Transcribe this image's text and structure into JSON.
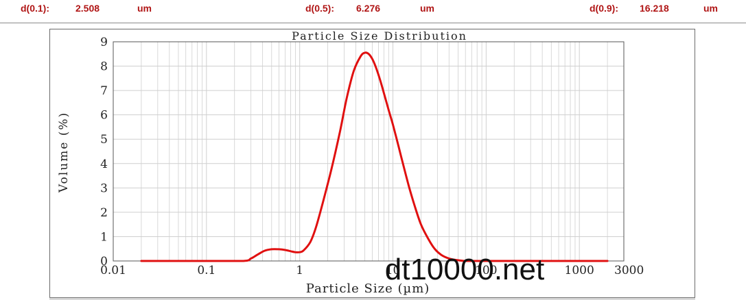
{
  "stats": {
    "d10": {
      "label": "d(0.1):",
      "value": "2.508",
      "unit": "um"
    },
    "d50": {
      "label": "d(0.5):",
      "value": "6.276",
      "unit": "um"
    },
    "d90": {
      "label": "d(0.9):",
      "value": "16.218",
      "unit": "um"
    }
  },
  "watermark": "dt10000.net",
  "colors": {
    "stat_text": "#b01515",
    "curve": "#e01010",
    "grid": "#cfcfcf",
    "axis": "#555555"
  },
  "chart_data": {
    "type": "line",
    "title": "Particle Size Distribution",
    "xlabel": "Particle Size (µm)",
    "ylabel": "Volume (%)",
    "x_scale": "log",
    "xlim": [
      0.01,
      3000
    ],
    "ylim": [
      0,
      9
    ],
    "x_tick_labels": [
      {
        "value": 0.01,
        "label": "0.01"
      },
      {
        "value": 0.1,
        "label": "0.1"
      },
      {
        "value": 1,
        "label": "1"
      },
      {
        "value": 10,
        "label": "10"
      },
      {
        "value": 100,
        "label": "100"
      },
      {
        "value": 1000,
        "label": "1000"
      },
      {
        "value": 3000,
        "label": "3000"
      }
    ],
    "y_ticks": [
      0,
      1,
      2,
      3,
      4,
      5,
      6,
      7,
      8,
      9
    ],
    "grid": true,
    "series": [
      {
        "color": "#e01010",
        "x": [
          0.02,
          0.1,
          0.25,
          0.3,
          0.35,
          0.42,
          0.5,
          0.6,
          0.7,
          0.8,
          0.9,
          1.0,
          1.1,
          1.3,
          1.5,
          1.8,
          2.2,
          2.7,
          3.2,
          3.8,
          4.5,
          5.0,
          5.5,
          6.0,
          6.5,
          7.2,
          8.0,
          9.0,
          10.0,
          11.5,
          13.0,
          15.0,
          17.0,
          20.0,
          24.0,
          28.0,
          33.0,
          40.0,
          48.0,
          60.0,
          80.0,
          120.0,
          200.0,
          500.0,
          1000.0,
          2000.0
        ],
        "y": [
          0.0,
          0.0,
          0.0,
          0.1,
          0.25,
          0.42,
          0.48,
          0.48,
          0.45,
          0.4,
          0.36,
          0.36,
          0.43,
          0.78,
          1.4,
          2.5,
          3.8,
          5.3,
          6.7,
          7.8,
          8.4,
          8.55,
          8.5,
          8.3,
          8.0,
          7.5,
          6.9,
          6.2,
          5.6,
          4.7,
          3.9,
          3.0,
          2.3,
          1.5,
          0.9,
          0.5,
          0.25,
          0.1,
          0.04,
          0.0,
          0.0,
          0.0,
          0.0,
          0.0,
          0.0,
          0.0
        ]
      }
    ]
  }
}
